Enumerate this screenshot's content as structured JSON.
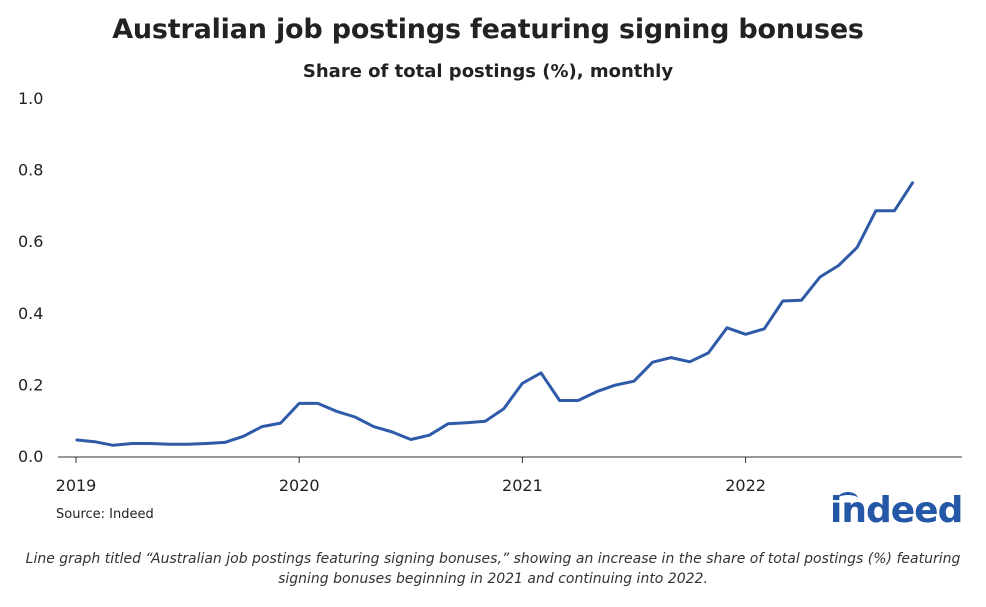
{
  "chart_data": {
    "type": "line",
    "title": "Australian job postings featuring signing bonuses",
    "subtitle": "Share of total postings (%), monthly",
    "xlabel": "",
    "ylabel": "",
    "x_tick_labels": [
      "2019",
      "2020",
      "2021",
      "2022"
    ],
    "y_tick_labels": [
      "0.0",
      "0.2",
      "0.4",
      "0.6",
      "0.8",
      "1.0"
    ],
    "ylim": [
      0,
      1.0
    ],
    "grid": false,
    "line_color": "#2e5aa8",
    "x": [
      "2019-01",
      "2019-02",
      "2019-03",
      "2019-04",
      "2019-05",
      "2019-06",
      "2019-07",
      "2019-08",
      "2019-09",
      "2019-10",
      "2019-11",
      "2019-12",
      "2020-01",
      "2020-02",
      "2020-03",
      "2020-04",
      "2020-05",
      "2020-06",
      "2020-07",
      "2020-08",
      "2020-09",
      "2020-10",
      "2020-11",
      "2020-12",
      "2021-01",
      "2021-02",
      "2021-03",
      "2021-04",
      "2021-05",
      "2021-06",
      "2021-07",
      "2021-08",
      "2021-09",
      "2021-10",
      "2021-11",
      "2021-12",
      "2022-01",
      "2022-02",
      "2022-03",
      "2022-04",
      "2022-05",
      "2022-06",
      "2022-07",
      "2022-08",
      "2022-09",
      "2022-10"
    ],
    "values": [
      0.045,
      0.04,
      0.03,
      0.035,
      0.035,
      0.033,
      0.033,
      0.035,
      0.038,
      0.055,
      0.082,
      0.092,
      0.147,
      0.147,
      0.125,
      0.109,
      0.082,
      0.067,
      0.046,
      0.058,
      0.09,
      0.093,
      0.097,
      0.132,
      0.203,
      0.232,
      0.155,
      0.155,
      0.18,
      0.198,
      0.209,
      0.262,
      0.275,
      0.263,
      0.288,
      0.358,
      0.34,
      0.355,
      0.433,
      0.435,
      0.5,
      0.532,
      0.583,
      0.685,
      0.685,
      0.765
    ]
  },
  "source": "Source: Indeed",
  "logo_text": "indeed",
  "logo_color": "#2557a7",
  "caption": "Line graph titled “Australian job postings featuring signing bonuses,” showing an increase in the share of total postings (%) featuring signing bonuses beginning in 2021 and continuing into 2022."
}
